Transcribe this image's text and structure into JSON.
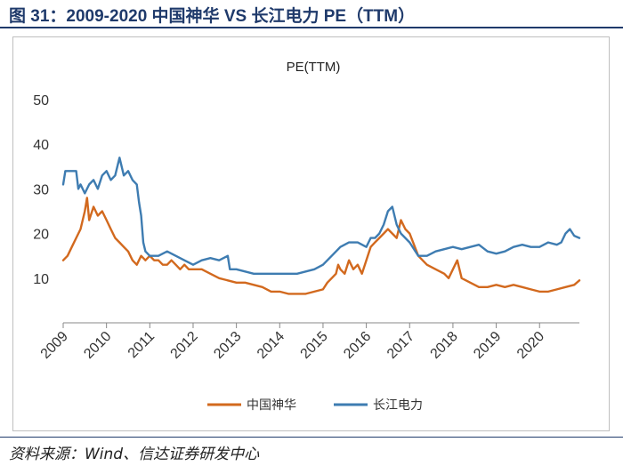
{
  "figure": {
    "title": "图 31：2009-2020 中国神华 VS 长江电力 PE（TTM）",
    "source": "资料来源：Wind、信达证券研发中心"
  },
  "colors": {
    "shenhua": "#d2691e",
    "changjiang": "#3e7cb1",
    "title": "#1f3a6b"
  },
  "chart_data": {
    "type": "line",
    "title": "PE(TTM)",
    "xlabel": "",
    "ylabel": "",
    "xlim": [
      2009,
      2020.92
    ],
    "ylim": [
      0,
      50
    ],
    "y_ticks": [
      "10",
      "20",
      "30",
      "40",
      "50"
    ],
    "x_ticks": [
      "2009",
      "2010",
      "2011",
      "2012",
      "2013",
      "2014",
      "2015",
      "2016",
      "2017",
      "2018",
      "2019",
      "2020"
    ],
    "series": [
      {
        "name": "中国神华",
        "color": "#d2691e",
        "x": [
          2009.0,
          2009.1,
          2009.2,
          2009.3,
          2009.4,
          2009.5,
          2009.55,
          2009.6,
          2009.7,
          2009.8,
          2009.9,
          2010.0,
          2010.1,
          2010.2,
          2010.3,
          2010.4,
          2010.5,
          2010.6,
          2010.7,
          2010.8,
          2010.9,
          2011.0,
          2011.1,
          2011.2,
          2011.3,
          2011.4,
          2011.5,
          2011.6,
          2011.7,
          2011.8,
          2011.9,
          2012.0,
          2012.2,
          2012.4,
          2012.6,
          2012.8,
          2013.0,
          2013.2,
          2013.4,
          2013.6,
          2013.8,
          2014.0,
          2014.2,
          2014.4,
          2014.6,
          2014.8,
          2015.0,
          2015.1,
          2015.2,
          2015.3,
          2015.35,
          2015.4,
          2015.5,
          2015.6,
          2015.7,
          2015.8,
          2015.9,
          2016.0,
          2016.1,
          2016.2,
          2016.3,
          2016.4,
          2016.5,
          2016.6,
          2016.7,
          2016.8,
          2016.9,
          2017.0,
          2017.2,
          2017.4,
          2017.6,
          2017.8,
          2017.9,
          2018.0,
          2018.1,
          2018.2,
          2018.4,
          2018.6,
          2018.8,
          2019.0,
          2019.2,
          2019.4,
          2019.6,
          2019.8,
          2020.0,
          2020.2,
          2020.4,
          2020.6,
          2020.8,
          2020.92
        ],
        "values": [
          14,
          15,
          17,
          19,
          21,
          25,
          28,
          23,
          26,
          24,
          25,
          23,
          21,
          19,
          18,
          17,
          16,
          14,
          13,
          15,
          14,
          15,
          14,
          14,
          13,
          13,
          14,
          13,
          12,
          13,
          12,
          12,
          12,
          11,
          10,
          9.5,
          9,
          9,
          8.5,
          8,
          7,
          7,
          6.5,
          6.5,
          6.5,
          7,
          7.5,
          9,
          10,
          11,
          13,
          12,
          11,
          14,
          12,
          13,
          11,
          14,
          17,
          18,
          19,
          20,
          21,
          20,
          19,
          23,
          21,
          20,
          15,
          13,
          12,
          11,
          10,
          12,
          14,
          10,
          9,
          8,
          8,
          8.5,
          8,
          8.5,
          8,
          7.5,
          7,
          7,
          7.5,
          8,
          8.5,
          9.5
        ]
      },
      {
        "name": "长江电力",
        "color": "#3e7cb1",
        "x": [
          2009.0,
          2009.05,
          2009.2,
          2009.3,
          2009.35,
          2009.4,
          2009.5,
          2009.6,
          2009.7,
          2009.8,
          2009.9,
          2010.0,
          2010.1,
          2010.2,
          2010.3,
          2010.35,
          2010.4,
          2010.5,
          2010.6,
          2010.7,
          2010.75,
          2010.8,
          2010.85,
          2010.9,
          2011.0,
          2011.2,
          2011.4,
          2011.6,
          2011.8,
          2012.0,
          2012.2,
          2012.4,
          2012.6,
          2012.8,
          2012.85,
          2013.0,
          2013.2,
          2013.4,
          2013.6,
          2013.8,
          2014.0,
          2014.2,
          2014.4,
          2014.6,
          2014.8,
          2015.0,
          2015.2,
          2015.4,
          2015.6,
          2015.8,
          2016.0,
          2016.1,
          2016.2,
          2016.3,
          2016.4,
          2016.5,
          2016.6,
          2016.7,
          2016.8,
          2016.9,
          2017.0,
          2017.2,
          2017.4,
          2017.6,
          2017.8,
          2018.0,
          2018.2,
          2018.4,
          2018.6,
          2018.8,
          2019.0,
          2019.2,
          2019.4,
          2019.6,
          2019.8,
          2020.0,
          2020.2,
          2020.4,
          2020.5,
          2020.6,
          2020.7,
          2020.8,
          2020.92
        ],
        "values": [
          31,
          34,
          34,
          34,
          30,
          31,
          29,
          31,
          32,
          30,
          33,
          34,
          32,
          33,
          37,
          35,
          33,
          34,
          32,
          31,
          27,
          24,
          18,
          16,
          15,
          15,
          16,
          15,
          14,
          13,
          14,
          14.5,
          14,
          15,
          12,
          12,
          11.5,
          11,
          11,
          11,
          11,
          11,
          11,
          11.5,
          12,
          13,
          15,
          17,
          18,
          18,
          17,
          19,
          19,
          20,
          22,
          25,
          26,
          22,
          20,
          19,
          18,
          15,
          15,
          16,
          16.5,
          17,
          16.5,
          17,
          17.5,
          16,
          15.5,
          16,
          17,
          17.5,
          17,
          17,
          18,
          17.5,
          18,
          20,
          21,
          19.5,
          19
        ]
      }
    ]
  }
}
